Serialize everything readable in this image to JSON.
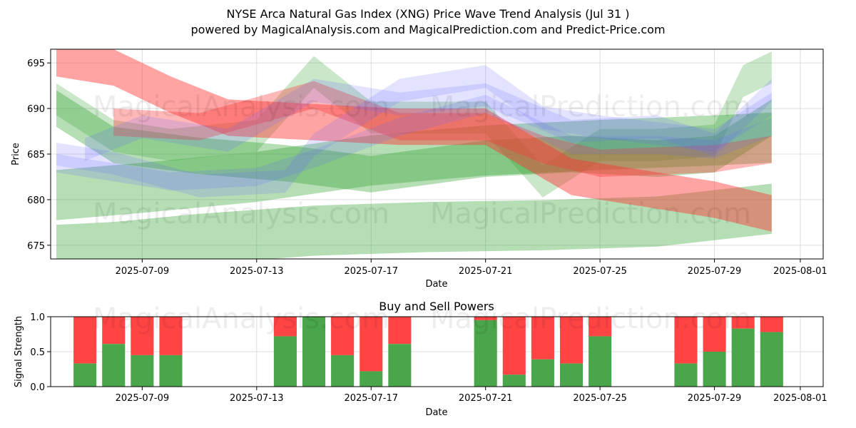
{
  "title_line1": "NYSE Arca Natural Gas Index (XNG) Price Wave Trend Analysis (Jul 31 )",
  "title_line2": "powered by MagicalAnalysis.com and MagicalPrediction.com and Predict-Price.com",
  "watermarks": [
    "MagicalAnalysis.com",
    "MagicalPrediction.com"
  ],
  "colors": {
    "green": "#2ca02c",
    "red": "#ff3333",
    "blue": "#6666ff",
    "buy": "#4aa64a",
    "sell": "#ff4444",
    "grid": "#dddddd"
  },
  "chart_data": [
    {
      "type": "area",
      "title": "",
      "xlabel": "Date",
      "ylabel": "Price",
      "xlim": [
        "2025-07-05.8",
        "2025-08-01.8"
      ],
      "ylim": [
        673.5,
        696.5
      ],
      "x_ticks": [
        "2025-07-09",
        "2025-07-13",
        "2025-07-17",
        "2025-07-21",
        "2025-07-25",
        "2025-07-29",
        "2025-08-01"
      ],
      "y_ticks": [
        675,
        680,
        685,
        690,
        695
      ],
      "grid": true,
      "bands": [
        {
          "color": "green",
          "opacity": 0.35,
          "width": 5.5,
          "dates": [
            "2025-07-06",
            "2025-07-08",
            "2025-07-11",
            "2025-07-15",
            "2025-07-19",
            "2025-07-23",
            "2025-07-27",
            "2025-07-31"
          ],
          "prices": [
            674.5,
            674.8,
            675.7,
            676.6,
            677.0,
            677.2,
            677.6,
            679.0
          ]
        },
        {
          "color": "green",
          "opacity": 0.35,
          "width": 5.5,
          "dates": [
            "2025-07-06",
            "2025-07-09",
            "2025-07-13",
            "2025-07-17",
            "2025-07-21",
            "2025-07-25",
            "2025-07-29",
            "2025-07-31"
          ],
          "prices": [
            680.5,
            681.3,
            682.5,
            684.3,
            685.4,
            686.0,
            686.5,
            686.8
          ]
        },
        {
          "color": "green",
          "opacity": 0.35,
          "width": 4.0,
          "dates": [
            "2025-07-06",
            "2025-07-08",
            "2025-07-11",
            "2025-07-14",
            "2025-07-17",
            "2025-07-21",
            "2025-07-24",
            "2025-07-27",
            "2025-07-29",
            "2025-07-31"
          ],
          "prices": [
            690.0,
            686.0,
            684.8,
            684.0,
            682.8,
            684.5,
            685.0,
            684.5,
            685.0,
            689.0
          ]
        },
        {
          "color": "green",
          "opacity": 0.25,
          "width": 3.5,
          "dates": [
            "2025-07-06",
            "2025-07-08",
            "2025-07-10",
            "2025-07-13",
            "2025-07-15",
            "2025-07-17",
            "2025-07-21",
            "2025-07-23",
            "2025-07-25",
            "2025-07-27",
            "2025-07-29",
            "2025-07-30",
            "2025-07-31"
          ],
          "prices": [
            691.0,
            687.0,
            686.0,
            687.0,
            694.0,
            689.0,
            689.0,
            682.0,
            686.0,
            686.0,
            686.5,
            693.0,
            694.5
          ]
        },
        {
          "color": "red",
          "opacity": 0.45,
          "width": 4.0,
          "dates": [
            "2025-07-06",
            "2025-07-08",
            "2025-07-10",
            "2025-07-12",
            "2025-07-15",
            "2025-07-18",
            "2025-07-21",
            "2025-07-24",
            "2025-07-27",
            "2025-07-29",
            "2025-07-31"
          ],
          "prices": [
            695.5,
            694.5,
            691.5,
            689.0,
            688.5,
            688.0,
            688.0,
            682.5,
            681.0,
            680.0,
            678.5
          ]
        },
        {
          "color": "red",
          "opacity": 0.35,
          "width": 3.0,
          "dates": [
            "2025-07-08",
            "2025-07-11",
            "2025-07-15",
            "2025-07-18",
            "2025-07-21",
            "2025-07-23",
            "2025-07-25",
            "2025-07-29",
            "2025-07-31"
          ],
          "prices": [
            688.5,
            688.0,
            691.5,
            688.0,
            688.0,
            685.5,
            684.0,
            684.5,
            685.5
          ]
        },
        {
          "color": "blue",
          "opacity": 0.18,
          "width": 2.5,
          "dates": [
            "2025-07-06",
            "2025-07-08",
            "2025-07-11",
            "2025-07-14",
            "2025-07-15",
            "2025-07-18",
            "2025-07-21",
            "2025-07-23",
            "2025-07-25",
            "2025-07-29",
            "2025-07-31"
          ],
          "prices": [
            685.0,
            684.0,
            681.5,
            682.0,
            686.0,
            692.0,
            693.5,
            689.0,
            688.0,
            686.5,
            690.5
          ]
        },
        {
          "color": "blue",
          "opacity": 0.18,
          "width": 2.5,
          "dates": [
            "2025-07-07",
            "2025-07-09",
            "2025-07-12",
            "2025-07-15",
            "2025-07-18",
            "2025-07-21",
            "2025-07-24",
            "2025-07-27",
            "2025-07-29",
            "2025-07-31"
          ],
          "prices": [
            685.5,
            688.0,
            686.5,
            692.0,
            690.5,
            691.5,
            687.5,
            688.0,
            686.0,
            692.0
          ]
        },
        {
          "color": "blue",
          "opacity": 0.18,
          "width": 2.0,
          "dates": [
            "2025-07-06",
            "2025-07-08",
            "2025-07-10",
            "2025-07-13",
            "2025-07-15",
            "2025-07-18",
            "2025-07-21",
            "2025-07-24",
            "2025-07-27",
            "2025-07-29",
            "2025-07-31"
          ],
          "prices": [
            684.0,
            683.0,
            682.0,
            682.5,
            684.5,
            688.0,
            690.5,
            686.0,
            686.0,
            685.5,
            688.0
          ]
        }
      ]
    },
    {
      "type": "bar",
      "title": "Buy and Sell Powers",
      "xlabel": "Date",
      "ylabel": "Signal Strength",
      "ylim": [
        0,
        1
      ],
      "y_ticks": [
        0.0,
        0.5,
        1.0
      ],
      "x_ticks": [
        "2025-07-09",
        "2025-07-13",
        "2025-07-17",
        "2025-07-21",
        "2025-07-25",
        "2025-07-29",
        "2025-08-01"
      ],
      "grid": true,
      "series": [
        {
          "name": "Buy",
          "color": "buy"
        },
        {
          "name": "Sell",
          "color": "sell"
        }
      ],
      "dates": [
        "2025-07-07",
        "2025-07-08",
        "2025-07-09",
        "2025-07-10",
        "2025-07-14",
        "2025-07-15",
        "2025-07-16",
        "2025-07-17",
        "2025-07-18",
        "2025-07-21",
        "2025-07-22",
        "2025-07-23",
        "2025-07-24",
        "2025-07-25",
        "2025-07-28",
        "2025-07-29",
        "2025-07-30",
        "2025-07-31"
      ],
      "buy": [
        0.33,
        0.61,
        0.45,
        0.45,
        0.72,
        1.0,
        0.45,
        0.22,
        0.61,
        0.95,
        0.17,
        0.39,
        0.33,
        0.72,
        0.33,
        0.5,
        0.83,
        0.78
      ]
    }
  ]
}
